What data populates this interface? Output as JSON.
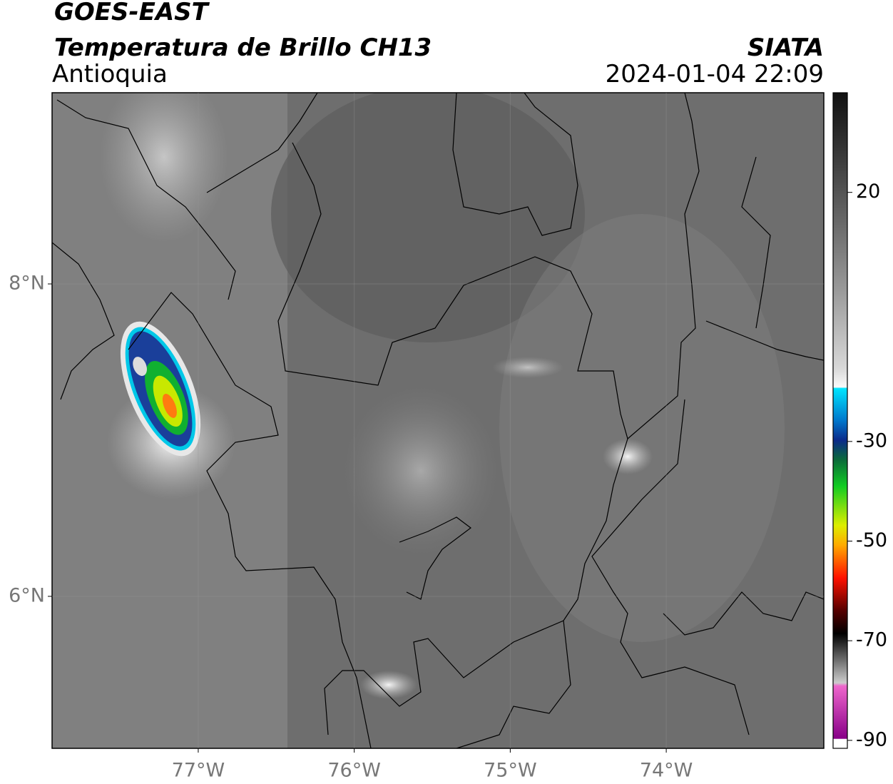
{
  "header": {
    "title": "GOES-EAST",
    "subtitle": "Temperatura de Brillo CH13",
    "region": "Antioquia",
    "source": "SIATA",
    "datetime": "2024-01-04 22:09"
  },
  "map": {
    "lonlim": [
      -77.937,
      -72.99
    ],
    "latlim": [
      5.027,
      9.224
    ],
    "lonticks": [
      {
        "value": -77,
        "label": "77°W"
      },
      {
        "value": -76,
        "label": "76°W"
      },
      {
        "value": -75,
        "label": "75°W"
      },
      {
        "value": -74,
        "label": "74°W"
      }
    ],
    "latticks": [
      {
        "value": 8,
        "label": "8°N"
      },
      {
        "value": 6,
        "label": "6°N"
      }
    ]
  },
  "colorbar": {
    "lim": [
      -91.6,
      40
    ],
    "ticks": [
      20,
      -30,
      -50,
      -70,
      -90
    ]
  }
}
